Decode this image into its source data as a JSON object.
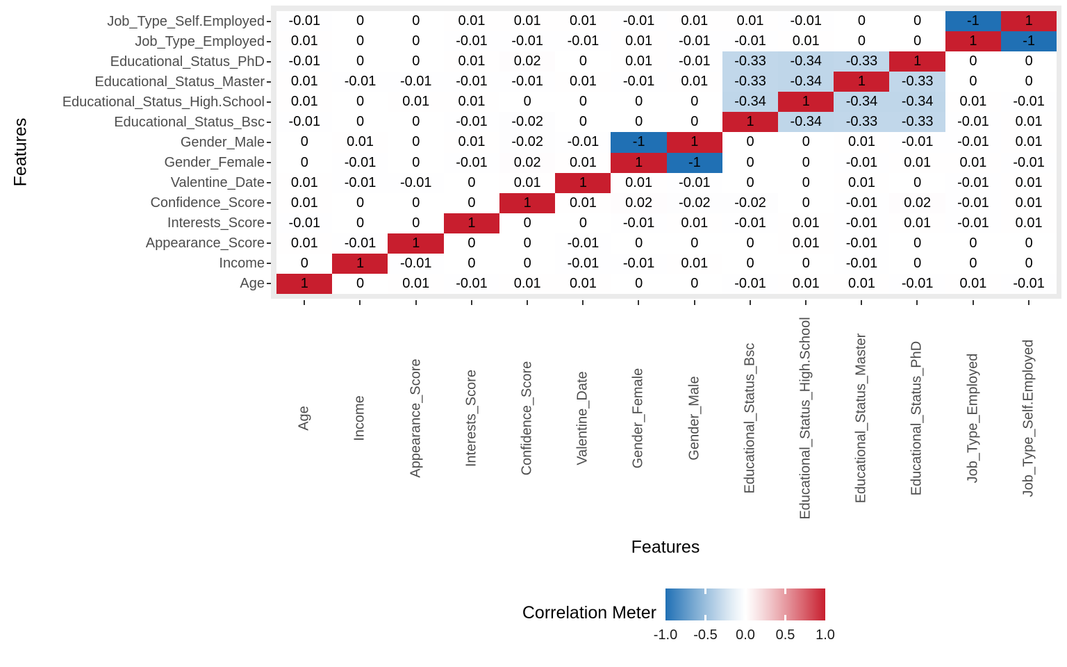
{
  "chart_data": {
    "type": "heatmap",
    "title": "",
    "xlabel": "Features",
    "ylabel": "Features",
    "legend_title": "Correlation Meter",
    "legend_ticks": [
      "-1.0",
      "-0.5",
      "0.0",
      "0.5",
      "1.0"
    ],
    "legend_range": [
      -1,
      1
    ],
    "grid": false,
    "legend_position": "bottom",
    "colors": {
      "low": "#2070B4",
      "mid": "#FFFFFF",
      "high": "#C81E2E",
      "panel_background": "#EBEBEB",
      "axis_text": "#4D4D4D",
      "tick_mark": "#333333",
      "cell_text": "#000000"
    },
    "x_categories": [
      "Age",
      "Income",
      "Appearance_Score",
      "Interests_Score",
      "Confidence_Score",
      "Valentine_Date",
      "Gender_Female",
      "Gender_Male",
      "Educational_Status_Bsc",
      "Educational_Status_High.School",
      "Educational_Status_Master",
      "Educational_Status_PhD",
      "Job_Type_Employed",
      "Job_Type_Self.Employed"
    ],
    "y_categories_top_to_bottom": [
      "Job_Type_Self.Employed",
      "Job_Type_Employed",
      "Educational_Status_PhD",
      "Educational_Status_Master",
      "Educational_Status_High.School",
      "Educational_Status_Bsc",
      "Gender_Male",
      "Gender_Female",
      "Valentine_Date",
      "Confidence_Score",
      "Interests_Score",
      "Appearance_Score",
      "Income",
      "Age"
    ],
    "rows_top_to_bottom": [
      [
        -0.01,
        0,
        0,
        0.01,
        0.01,
        0.01,
        -0.01,
        0.01,
        0.01,
        -0.01,
        0,
        0,
        -1,
        1
      ],
      [
        0.01,
        0,
        0,
        -0.01,
        -0.01,
        -0.01,
        0.01,
        -0.01,
        -0.01,
        0.01,
        0,
        0,
        1,
        -1
      ],
      [
        -0.01,
        0,
        0,
        0.01,
        0.02,
        0,
        0.01,
        -0.01,
        -0.33,
        -0.34,
        -0.33,
        1,
        0,
        0
      ],
      [
        0.01,
        -0.01,
        -0.01,
        -0.01,
        -0.01,
        0.01,
        -0.01,
        0.01,
        -0.33,
        -0.34,
        1,
        -0.33,
        0,
        0
      ],
      [
        0.01,
        0,
        0.01,
        0.01,
        0,
        0,
        0,
        0,
        -0.34,
        1,
        -0.34,
        -0.34,
        0.01,
        -0.01
      ],
      [
        -0.01,
        0,
        0,
        -0.01,
        -0.02,
        0,
        0,
        0,
        1,
        -0.34,
        -0.33,
        -0.33,
        -0.01,
        0.01
      ],
      [
        0,
        0.01,
        0,
        0.01,
        -0.02,
        -0.01,
        -1,
        1,
        0,
        0,
        0.01,
        -0.01,
        -0.01,
        0.01
      ],
      [
        0,
        -0.01,
        0,
        -0.01,
        0.02,
        0.01,
        1,
        -1,
        0,
        0,
        -0.01,
        0.01,
        0.01,
        -0.01
      ],
      [
        0.01,
        -0.01,
        -0.01,
        0,
        0.01,
        1,
        0.01,
        -0.01,
        0,
        0,
        0.01,
        0,
        -0.01,
        0.01
      ],
      [
        0.01,
        0,
        0,
        0,
        1,
        0.01,
        0.02,
        -0.02,
        -0.02,
        0,
        -0.01,
        0.02,
        -0.01,
        0.01
      ],
      [
        -0.01,
        0,
        0,
        1,
        0,
        0,
        -0.01,
        0.01,
        -0.01,
        0.01,
        -0.01,
        0.01,
        -0.01,
        0.01
      ],
      [
        0.01,
        -0.01,
        1,
        0,
        0,
        -0.01,
        0,
        0,
        0,
        0.01,
        -0.01,
        0,
        0,
        0
      ],
      [
        0,
        1,
        -0.01,
        0,
        0,
        -0.01,
        -0.01,
        0.01,
        0,
        0,
        -0.01,
        0,
        0,
        0
      ],
      [
        1,
        0,
        0.01,
        -0.01,
        0.01,
        0.01,
        0,
        0,
        -0.01,
        0.01,
        0.01,
        -0.01,
        0.01,
        -0.01
      ]
    ]
  }
}
